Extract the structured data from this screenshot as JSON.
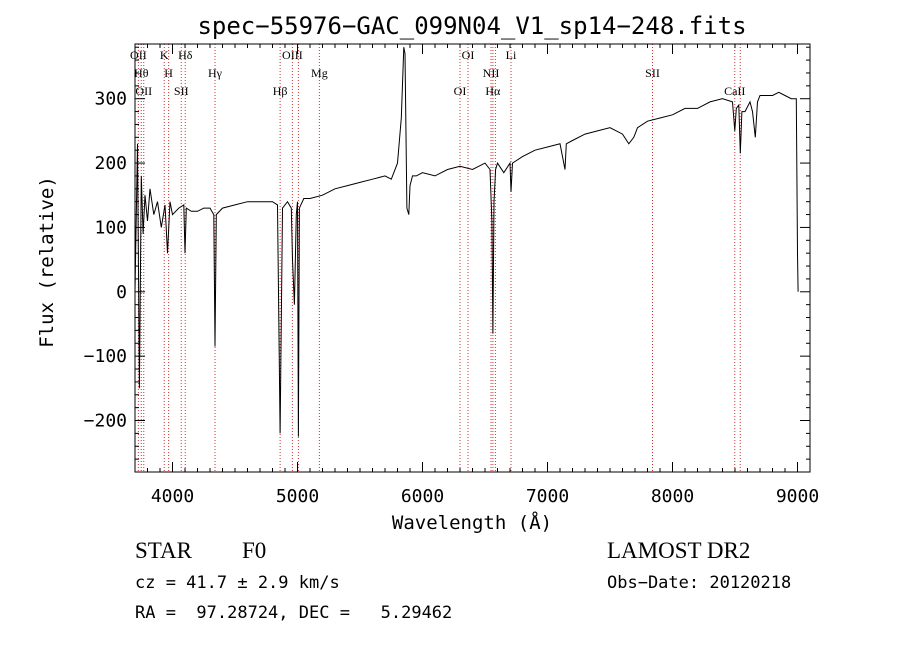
{
  "chart_data": {
    "type": "line",
    "title": "spec−55976−GAC_099N04_V1_sp14−248.fits",
    "xlabel": "Wavelength (Å)",
    "ylabel": "Flux (relative)",
    "xlim": [
      3700,
      9100
    ],
    "ylim": [
      -280,
      385
    ],
    "xticks": [
      4000,
      5000,
      6000,
      7000,
      8000,
      9000
    ],
    "xtick_labels": [
      "4000",
      "5000",
      "6000",
      "7000",
      "8000",
      "9000"
    ],
    "yticks": [
      -200,
      -100,
      0,
      100,
      200,
      300
    ],
    "ytick_labels": [
      "−200",
      "−100",
      "0",
      "100",
      "200",
      "300"
    ],
    "grid": false,
    "line_color": "#000000",
    "marker_line_color": "#cc3333",
    "series": [
      {
        "x": [
          3700,
          3720,
          3735,
          3750,
          3765,
          3780,
          3800,
          3820,
          3850,
          3880,
          3910,
          3940,
          3960,
          3980,
          4000,
          4050,
          4090,
          4100,
          4110,
          4150,
          4200,
          4250,
          4300,
          4330,
          4340,
          4350,
          4400,
          4500,
          4600,
          4700,
          4800,
          4840,
          4861,
          4880,
          4920,
          4950,
          4960,
          4975,
          4990,
          5000,
          5007,
          5015,
          5050,
          5100,
          5200,
          5300,
          5400,
          5500,
          5600,
          5700,
          5750,
          5800,
          5830,
          5850,
          5860,
          5875,
          5890,
          5900,
          5920,
          5950,
          6000,
          6100,
          6200,
          6300,
          6400,
          6500,
          6540,
          6555,
          6563,
          6572,
          6585,
          6600,
          6650,
          6700,
          6708,
          6720,
          6800,
          6900,
          7000,
          7100,
          7140,
          7150,
          7200,
          7300,
          7400,
          7500,
          7600,
          7650,
          7690,
          7720,
          7800,
          7900,
          8000,
          8100,
          8200,
          8300,
          8400,
          8480,
          8498,
          8510,
          8530,
          8542,
          8555,
          8580,
          8620,
          8640,
          8662,
          8680,
          8700,
          8750,
          8800,
          8850,
          8900,
          8950,
          8990,
          9000,
          9005
        ],
        "y": [
          0,
          230,
          -150,
          180,
          90,
          150,
          110,
          160,
          120,
          140,
          100,
          135,
          60,
          140,
          120,
          130,
          135,
          60,
          130,
          125,
          125,
          130,
          130,
          120,
          -85,
          120,
          130,
          135,
          140,
          140,
          140,
          135,
          -220,
          130,
          140,
          130,
          50,
          -20,
          120,
          140,
          -225,
          130,
          145,
          145,
          150,
          160,
          165,
          170,
          175,
          180,
          175,
          200,
          270,
          380,
          370,
          130,
          120,
          165,
          180,
          180,
          185,
          180,
          190,
          195,
          190,
          200,
          190,
          110,
          -65,
          140,
          190,
          200,
          185,
          200,
          155,
          200,
          210,
          220,
          225,
          230,
          190,
          230,
          235,
          245,
          250,
          255,
          245,
          230,
          240,
          255,
          265,
          270,
          275,
          285,
          285,
          295,
          300,
          295,
          250,
          285,
          290,
          215,
          280,
          280,
          295,
          280,
          240,
          295,
          305,
          305,
          305,
          310,
          305,
          300,
          300,
          60,
          0
        ]
      }
    ],
    "lines": [
      {
        "x": 3727,
        "label": "OII"
      },
      {
        "x": 3750,
        "label": "Hθ"
      },
      {
        "x": 3770,
        "label": "OII"
      },
      {
        "x": 3934,
        "label": "K"
      },
      {
        "x": 3969,
        "label": "H"
      },
      {
        "x": 4070,
        "label": "SII"
      },
      {
        "x": 4102,
        "label": "Hδ"
      },
      {
        "x": 4340,
        "label": "Hγ"
      },
      {
        "x": 4861,
        "label": "Hβ"
      },
      {
        "x": 4959,
        "label": "OIII"
      },
      {
        "x": 5007,
        "label": ""
      },
      {
        "x": 5175,
        "label": "Mg"
      },
      {
        "x": 6300,
        "label": "OI"
      },
      {
        "x": 6364,
        "label": "OI"
      },
      {
        "x": 6548,
        "label": "NII"
      },
      {
        "x": 6563,
        "label": "Hα"
      },
      {
        "x": 6583,
        "label": ""
      },
      {
        "x": 6708,
        "label": "Li"
      },
      {
        "x": 7840,
        "label": "SII"
      },
      {
        "x": 8498,
        "label": "CaII"
      },
      {
        "x": 8542,
        "label": ""
      }
    ]
  },
  "info": {
    "object_type": "STAR",
    "subclass": "F0",
    "survey": "LAMOST DR2",
    "cz": "cz = 41.7 ± 2.9 km/s",
    "obs_date": "Obs−Date: 20120218",
    "coords": "RA =  97.28724, DEC =   5.29462"
  }
}
